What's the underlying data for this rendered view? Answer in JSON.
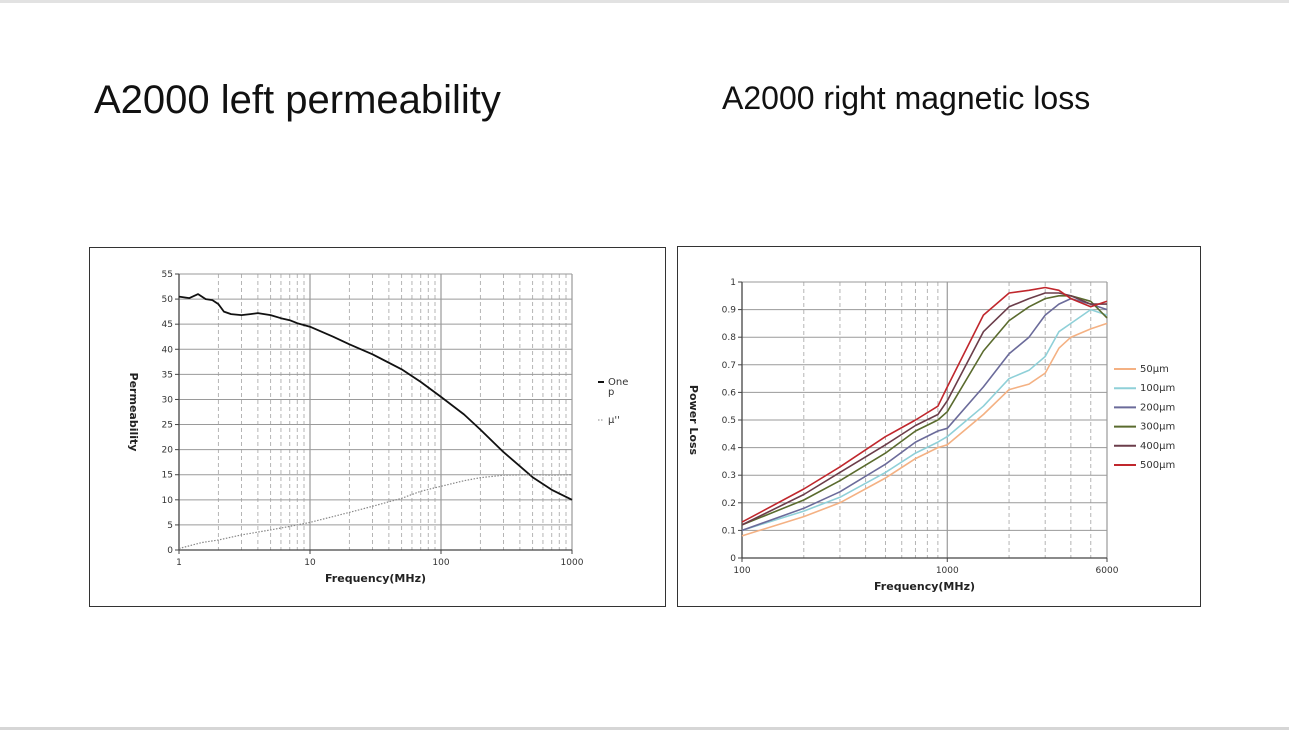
{
  "slide": {
    "title_left": "A2000 left permeability",
    "title_right": "A2000 right magnetic loss"
  },
  "chart_data": [
    {
      "type": "line",
      "xlabel": "Frequency(MHz)",
      "ylabel": "Permeability",
      "xscale": "log",
      "xlim": [
        1,
        1000
      ],
      "ylim": [
        0,
        55
      ],
      "xticks": [
        1,
        10,
        100,
        1000
      ],
      "xtick_labels": [
        "1",
        "10",
        "100",
        "1000"
      ],
      "yticks": [
        0,
        5,
        10,
        15,
        20,
        25,
        30,
        35,
        40,
        45,
        50,
        55
      ],
      "grid": true,
      "legend_position": "right",
      "series": [
        {
          "name": "One\np",
          "color": "#111111",
          "style": "solid",
          "points": [
            [
              1,
              50.5
            ],
            [
              1.2,
              50.2
            ],
            [
              1.4,
              51
            ],
            [
              1.6,
              50
            ],
            [
              1.8,
              49.8
            ],
            [
              2,
              49
            ],
            [
              2.2,
              47.5
            ],
            [
              2.5,
              47
            ],
            [
              3,
              46.8
            ],
            [
              3.5,
              47
            ],
            [
              4,
              47.2
            ],
            [
              5,
              46.8
            ],
            [
              6,
              46.2
            ],
            [
              7,
              45.8
            ],
            [
              8,
              45.2
            ],
            [
              10,
              44.5
            ],
            [
              15,
              42.5
            ],
            [
              20,
              41
            ],
            [
              30,
              39
            ],
            [
              50,
              36
            ],
            [
              70,
              33.5
            ],
            [
              100,
              30.5
            ],
            [
              150,
              27
            ],
            [
              200,
              24
            ],
            [
              300,
              19.5
            ],
            [
              500,
              14.5
            ],
            [
              700,
              12
            ],
            [
              1000,
              10
            ]
          ]
        },
        {
          "name": "μ''",
          "color": "#888888",
          "style": "dotted",
          "points": [
            [
              1,
              0.3
            ],
            [
              1.5,
              1.5
            ],
            [
              2,
              2
            ],
            [
              3,
              3
            ],
            [
              5,
              4
            ],
            [
              7,
              4.7
            ],
            [
              10,
              5.5
            ],
            [
              20,
              7.5
            ],
            [
              30,
              8.7
            ],
            [
              50,
              10.3
            ],
            [
              70,
              11.7
            ],
            [
              100,
              12.7
            ],
            [
              150,
              13.8
            ],
            [
              200,
              14.4
            ],
            [
              300,
              14.9
            ],
            [
              500,
              15
            ],
            [
              700,
              14.9
            ],
            [
              1000,
              15
            ]
          ]
        }
      ]
    },
    {
      "type": "line",
      "xlabel": "Frequency(MHz)",
      "ylabel": "Power Loss",
      "xscale": "log",
      "xlim": [
        100,
        6000
      ],
      "ylim": [
        0,
        1
      ],
      "xticks": [
        100,
        1000,
        6000
      ],
      "xtick_labels": [
        "100",
        "1000",
        "6000"
      ],
      "yticks": [
        0,
        0.1,
        0.2,
        0.3,
        0.4,
        0.5,
        0.6,
        0.7,
        0.8,
        0.9,
        1
      ],
      "ytick_labels": [
        "0",
        "0.1",
        "0.2",
        "0.3",
        "0.4",
        "0.5",
        "0.6",
        "0.7",
        "0.8",
        "0.9",
        "1"
      ],
      "grid": true,
      "legend_position": "right",
      "series": [
        {
          "name": "50μm",
          "color": "#f4b183",
          "points": [
            [
              100,
              0.08
            ],
            [
              200,
              0.15
            ],
            [
              300,
              0.2
            ],
            [
              500,
              0.29
            ],
            [
              700,
              0.36
            ],
            [
              900,
              0.4
            ],
            [
              1000,
              0.41
            ],
            [
              1500,
              0.52
            ],
            [
              2000,
              0.61
            ],
            [
              2500,
              0.63
            ],
            [
              3000,
              0.67
            ],
            [
              3500,
              0.76
            ],
            [
              4000,
              0.8
            ],
            [
              5000,
              0.83
            ],
            [
              6000,
              0.85
            ]
          ]
        },
        {
          "name": "100μm",
          "color": "#8fd0d8",
          "points": [
            [
              100,
              0.1
            ],
            [
              200,
              0.17
            ],
            [
              300,
              0.22
            ],
            [
              500,
              0.31
            ],
            [
              700,
              0.38
            ],
            [
              900,
              0.42
            ],
            [
              1000,
              0.44
            ],
            [
              1500,
              0.55
            ],
            [
              2000,
              0.65
            ],
            [
              2500,
              0.68
            ],
            [
              3000,
              0.73
            ],
            [
              3500,
              0.82
            ],
            [
              4000,
              0.85
            ],
            [
              5000,
              0.9
            ],
            [
              6000,
              0.88
            ]
          ]
        },
        {
          "name": "200μm",
          "color": "#6b6b9a",
          "points": [
            [
              100,
              0.1
            ],
            [
              200,
              0.18
            ],
            [
              300,
              0.24
            ],
            [
              500,
              0.34
            ],
            [
              700,
              0.42
            ],
            [
              900,
              0.46
            ],
            [
              1000,
              0.47
            ],
            [
              1500,
              0.62
            ],
            [
              2000,
              0.74
            ],
            [
              2500,
              0.8
            ],
            [
              3000,
              0.88
            ],
            [
              3500,
              0.92
            ],
            [
              4000,
              0.94
            ],
            [
              5000,
              0.92
            ],
            [
              6000,
              0.9
            ]
          ]
        },
        {
          "name": "300μm",
          "color": "#5a6b2e",
          "points": [
            [
              100,
              0.12
            ],
            [
              200,
              0.21
            ],
            [
              300,
              0.28
            ],
            [
              500,
              0.38
            ],
            [
              700,
              0.46
            ],
            [
              900,
              0.5
            ],
            [
              1000,
              0.53
            ],
            [
              1500,
              0.75
            ],
            [
              2000,
              0.86
            ],
            [
              2500,
              0.91
            ],
            [
              3000,
              0.94
            ],
            [
              3500,
              0.95
            ],
            [
              4000,
              0.95
            ],
            [
              5000,
              0.93
            ],
            [
              6000,
              0.87
            ]
          ]
        },
        {
          "name": "400μm",
          "color": "#6b3d4a",
          "points": [
            [
              100,
              0.12
            ],
            [
              200,
              0.23
            ],
            [
              300,
              0.31
            ],
            [
              500,
              0.41
            ],
            [
              700,
              0.48
            ],
            [
              900,
              0.52
            ],
            [
              1000,
              0.57
            ],
            [
              1500,
              0.82
            ],
            [
              2000,
              0.91
            ],
            [
              2500,
              0.94
            ],
            [
              3000,
              0.96
            ],
            [
              3500,
              0.96
            ],
            [
              4000,
              0.95
            ],
            [
              5000,
              0.92
            ],
            [
              6000,
              0.92
            ]
          ]
        },
        {
          "name": "500μm",
          "color": "#c0272d",
          "points": [
            [
              100,
              0.13
            ],
            [
              200,
              0.25
            ],
            [
              300,
              0.33
            ],
            [
              500,
              0.44
            ],
            [
              700,
              0.5
            ],
            [
              900,
              0.55
            ],
            [
              1000,
              0.62
            ],
            [
              1500,
              0.88
            ],
            [
              2000,
              0.96
            ],
            [
              2500,
              0.97
            ],
            [
              3000,
              0.98
            ],
            [
              3500,
              0.97
            ],
            [
              4000,
              0.94
            ],
            [
              5000,
              0.91
            ],
            [
              6000,
              0.93
            ]
          ]
        }
      ]
    }
  ]
}
